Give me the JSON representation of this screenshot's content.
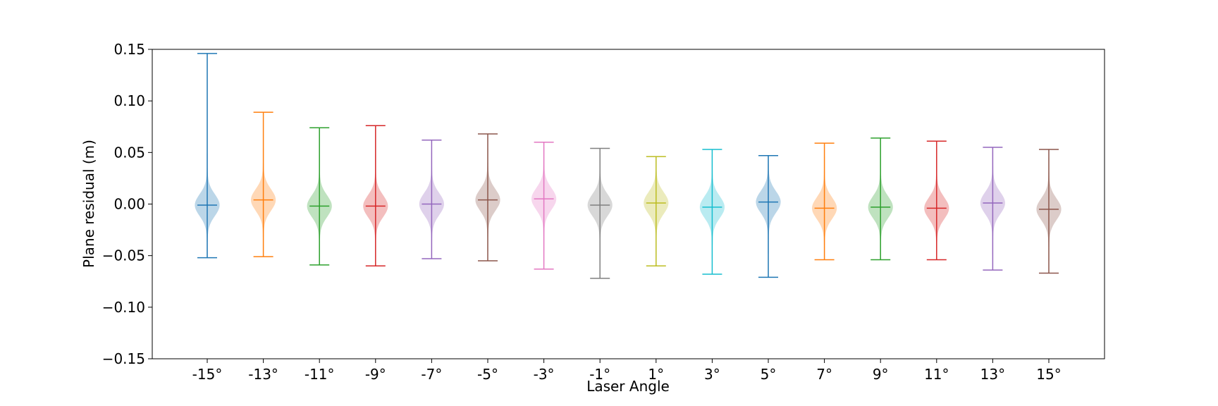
{
  "chart_data": {
    "type": "violin",
    "title": "",
    "xlabel": "Laser Angle",
    "ylabel": "Plane residual (m)",
    "ylim": [
      -0.15,
      0.15
    ],
    "yticks": [
      "0.15",
      "0.10",
      "0.05",
      "0.00",
      "−0.05",
      "−0.10",
      "−0.15"
    ],
    "ytick_values": [
      0.15,
      0.1,
      0.05,
      0.0,
      -0.05,
      -0.1,
      -0.15
    ],
    "grid": false,
    "categories": [
      "-15°",
      "-13°",
      "-11°",
      "-9°",
      "-7°",
      "-5°",
      "-3°",
      "-1°",
      "1°",
      "3°",
      "5°",
      "7°",
      "9°",
      "11°",
      "13°",
      "15°"
    ],
    "colors": [
      "#1f77b4",
      "#ff7f0e",
      "#2ca02c",
      "#d62728",
      "#9467bd",
      "#8c564b",
      "#e377c2",
      "#7f7f7f",
      "#bcbd22",
      "#17becf",
      "#1f77b4",
      "#ff7f0e",
      "#2ca02c",
      "#d62728",
      "#9467bd",
      "#8c564b"
    ],
    "max": [
      0.146,
      0.089,
      0.074,
      0.076,
      0.062,
      0.068,
      0.06,
      0.054,
      0.046,
      0.053,
      0.047,
      0.059,
      0.064,
      0.061,
      0.055,
      0.053
    ],
    "min": [
      -0.052,
      -0.051,
      -0.059,
      -0.06,
      -0.053,
      -0.055,
      -0.063,
      -0.072,
      -0.06,
      -0.068,
      -0.071,
      -0.054,
      -0.054,
      -0.054,
      -0.064,
      -0.067
    ],
    "median": [
      -0.001,
      0.004,
      -0.002,
      -0.002,
      0.0,
      0.004,
      0.005,
      -0.001,
      0.001,
      -0.003,
      0.002,
      -0.004,
      -0.003,
      -0.004,
      0.001,
      -0.005
    ]
  }
}
